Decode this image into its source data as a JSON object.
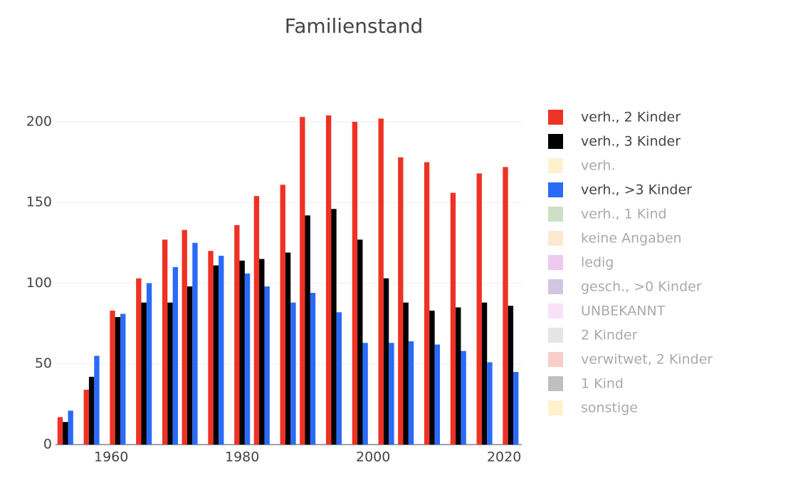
{
  "chart_data": {
    "type": "bar",
    "title": "Familienstand",
    "x": [
      1953,
      1957,
      1961,
      1965,
      1969,
      1972,
      1976,
      1980,
      1983,
      1987,
      1990,
      1994,
      1998,
      2002,
      2005,
      2009,
      2013,
      2017,
      2021
    ],
    "series": [
      {
        "name": "verh., 2 Kinder",
        "color": "#ee3224",
        "values": [
          17,
          34,
          83,
          103,
          127,
          133,
          120,
          136,
          154,
          161,
          203,
          204,
          200,
          202,
          178,
          175,
          156,
          168,
          172
        ]
      },
      {
        "name": "verh., 3 Kinder",
        "color": "#000000",
        "values": [
          14,
          42,
          79,
          88,
          88,
          98,
          111,
          114,
          115,
          119,
          142,
          146,
          127,
          103,
          88,
          83,
          85,
          88,
          86
        ]
      },
      {
        "name": "verh.",
        "color": "#fde49e",
        "hidden": true,
        "values": [
          null,
          null,
          null,
          null,
          null,
          null,
          null,
          null,
          null,
          null,
          null,
          null,
          null,
          null,
          null,
          null,
          null,
          null,
          null
        ]
      },
      {
        "name": "verh., >3 Kinder",
        "color": "#2a6af7",
        "values": [
          21,
          55,
          81,
          100,
          110,
          125,
          117,
          106,
          98,
          88,
          94,
          82,
          63,
          63,
          64,
          62,
          58,
          51,
          45
        ]
      },
      {
        "name": "verh., 1 Kind",
        "color": "#9bc18f",
        "hidden": true,
        "values": [
          null,
          null,
          null,
          null,
          null,
          null,
          null,
          null,
          null,
          null,
          null,
          null,
          null,
          null,
          null,
          null,
          null,
          null,
          null
        ]
      },
      {
        "name": "keine Angaben",
        "color": "#fbd49f",
        "hidden": true,
        "values": [
          null,
          null,
          null,
          null,
          null,
          null,
          null,
          null,
          null,
          null,
          null,
          null,
          null,
          null,
          null,
          null,
          null,
          null,
          null
        ]
      },
      {
        "name": "ledig",
        "color": "#de93e0",
        "hidden": true,
        "values": [
          null,
          null,
          null,
          null,
          null,
          null,
          null,
          null,
          null,
          null,
          null,
          null,
          null,
          null,
          null,
          null,
          null,
          null,
          null
        ]
      },
      {
        "name": "gesch., >0 Kinder",
        "color": "#a68bc5",
        "hidden": true,
        "values": [
          null,
          null,
          null,
          null,
          null,
          null,
          null,
          null,
          null,
          null,
          null,
          null,
          null,
          null,
          null,
          null,
          null,
          null,
          null
        ]
      },
      {
        "name": "UNBEKANNT",
        "color": "#f0c5f2",
        "hidden": true,
        "values": [
          null,
          null,
          null,
          null,
          null,
          null,
          null,
          null,
          null,
          null,
          null,
          null,
          null,
          null,
          null,
          null,
          null,
          null,
          null
        ]
      },
      {
        "name": "2 Kinder",
        "color": "#cccccc",
        "hidden": true,
        "values": [
          null,
          null,
          null,
          null,
          null,
          null,
          null,
          null,
          null,
          null,
          null,
          null,
          null,
          null,
          null,
          null,
          null,
          null,
          null
        ]
      },
      {
        "name": "verwitwet, 2 Kinder",
        "color": "#f59d92",
        "hidden": true,
        "values": [
          null,
          null,
          null,
          null,
          null,
          null,
          null,
          null,
          null,
          null,
          null,
          null,
          null,
          null,
          null,
          null,
          null,
          null,
          null
        ]
      },
      {
        "name": "1 Kind",
        "color": "#7f7f7f",
        "hidden": true,
        "values": [
          null,
          null,
          null,
          null,
          null,
          null,
          null,
          null,
          null,
          null,
          null,
          null,
          null,
          null,
          null,
          null,
          null,
          null,
          null
        ]
      },
      {
        "name": "sonstige",
        "color": "#fde49e",
        "hidden": true,
        "values": [
          null,
          null,
          null,
          null,
          null,
          null,
          null,
          null,
          null,
          null,
          null,
          null,
          null,
          null,
          null,
          null,
          null,
          null,
          null
        ]
      }
    ],
    "xlim": [
      1951.5,
      2022.7
    ],
    "xticks": [
      1960,
      1980,
      2000,
      2020
    ],
    "ylim": [
      0,
      215
    ],
    "yticks": [
      0,
      50,
      100,
      150,
      200
    ],
    "grid": true
  }
}
